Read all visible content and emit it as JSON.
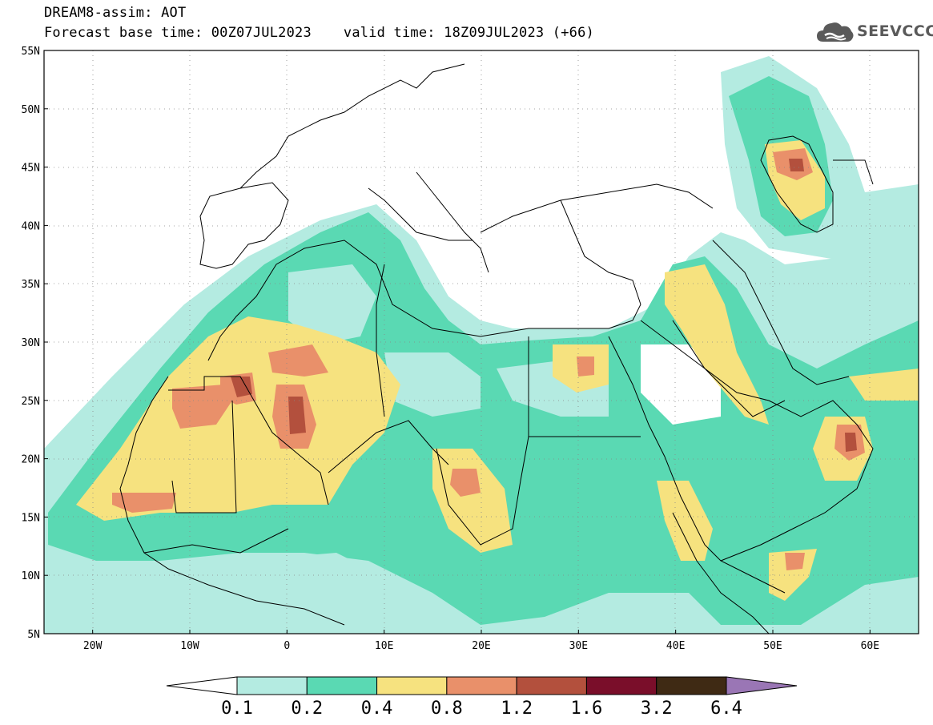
{
  "header": {
    "title": "DREAM8-assim: AOT",
    "base_time": "Forecast base time: 00Z07JUL2023",
    "valid_time": "valid time: 18Z09JUL2023 (+66)"
  },
  "logo": {
    "text": "SEEVCCC",
    "icon": "cloud-icon"
  },
  "map": {
    "lon_range": [
      -25,
      65
    ],
    "lat_range": [
      5,
      55
    ],
    "lat_ticks": [
      {
        "value": 55,
        "label": "55N"
      },
      {
        "value": 50,
        "label": "50N"
      },
      {
        "value": 45,
        "label": "45N"
      },
      {
        "value": 40,
        "label": "40N"
      },
      {
        "value": 35,
        "label": "35N"
      },
      {
        "value": 30,
        "label": "30N"
      },
      {
        "value": 25,
        "label": "25N"
      },
      {
        "value": 20,
        "label": "20N"
      },
      {
        "value": 15,
        "label": "15N"
      },
      {
        "value": 10,
        "label": "10N"
      },
      {
        "value": 5,
        "label": "5N"
      }
    ],
    "lon_ticks": [
      {
        "value": -20,
        "label": "20W"
      },
      {
        "value": -10,
        "label": "10W"
      },
      {
        "value": 0,
        "label": "0"
      },
      {
        "value": 10,
        "label": "10E"
      },
      {
        "value": 20,
        "label": "20E"
      },
      {
        "value": 30,
        "label": "30E"
      },
      {
        "value": 40,
        "label": "40E"
      },
      {
        "value": 50,
        "label": "50E"
      },
      {
        "value": 60,
        "label": "60E"
      }
    ],
    "grid": "dotted"
  },
  "colorbar": {
    "colors": [
      "#ffffff",
      "#b4ebe1",
      "#5ad9b3",
      "#f6e27f",
      "#e9906a",
      "#b3503d",
      "#7a0e2a",
      "#3f2a14",
      "#9a76b5"
    ],
    "labels": [
      "0.1",
      "0.2",
      "0.4",
      "0.8",
      "1.2",
      "1.6",
      "3.2",
      "6.4"
    ]
  }
}
